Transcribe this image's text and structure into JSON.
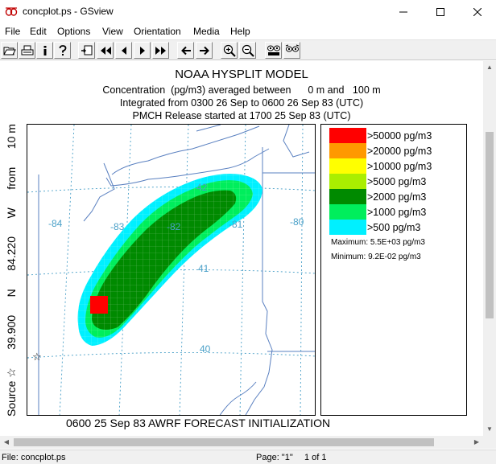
{
  "window": {
    "title": "concplot.ps - GSview",
    "icons": [
      "app-icon",
      "minimize-icon",
      "maximize-icon",
      "close-icon"
    ]
  },
  "menu": [
    "File",
    "Edit",
    "Options",
    "View",
    "Orientation",
    "Media",
    "Help"
  ],
  "toolbar": {
    "buttons": [
      "open-icon",
      "print-icon",
      "info-icon",
      "help-icon",
      "goto-page-icon",
      "first-page-icon",
      "prev-page-icon",
      "next-page-icon",
      "last-page-icon",
      "back-icon",
      "forward-icon",
      "zoom-in-icon",
      "zoom-out-icon",
      "text-view-icon",
      "full-screen-icon"
    ]
  },
  "plot": {
    "title": "NOAA HYSPLIT MODEL",
    "line2": "Concentration  (pg/m3) averaged between      0 m and   100 m",
    "line3": "Integrated from 0300 26 Sep to 0600 26 Sep 83 (UTC)",
    "line4": "PMCH Release started at 1700 25 Sep 83 (UTC)",
    "footer": "0600 25 Sep 83 AWRF FORECAST INITIALIZATION",
    "source_label": "Source ☆  39.900  N  84.220  W    from   10 m",
    "source_label_parts": [
      "Source ☆",
      "39.900",
      "N",
      "84.220",
      "W",
      "from",
      "10 m"
    ],
    "source_marker": "☆",
    "lon_labels": [
      "-84",
      "-83",
      "-82",
      "-81",
      "-80"
    ],
    "lat_labels": [
      "42",
      "41",
      "40"
    ],
    "colors": {
      "c500": "#00f0ff",
      "c1000": "#00ee5c",
      "c2000": "#008a00",
      "c5000": "#aaee00",
      "c10000": "#ffff00",
      "c20000": "#ff9900",
      "c50000": "#ff0000",
      "grid": "#4aa0c8",
      "map": "#5a80c0"
    }
  },
  "legend": {
    "entries": [
      {
        "label": ">50000 pg/m3",
        "color": "#ff0000"
      },
      {
        "label": ">20000 pg/m3",
        "color": "#ff9900"
      },
      {
        "label": ">10000 pg/m3",
        "color": "#ffff00"
      },
      {
        "label": ">5000 pg/m3",
        "color": "#aaee00"
      },
      {
        "label": ">2000 pg/m3",
        "color": "#008a00"
      },
      {
        "label": ">1000 pg/m3",
        "color": "#00ee5c"
      },
      {
        "label": ">500 pg/m3",
        "color": "#00f0ff"
      }
    ],
    "maximum": "Maximum: 5.5E+03 pg/m3",
    "minimum": "Minimum: 9.2E-02 pg/m3"
  },
  "status": {
    "file": "File: concplot.ps",
    "page": "Page: \"1\"",
    "count": "1 of 1"
  }
}
